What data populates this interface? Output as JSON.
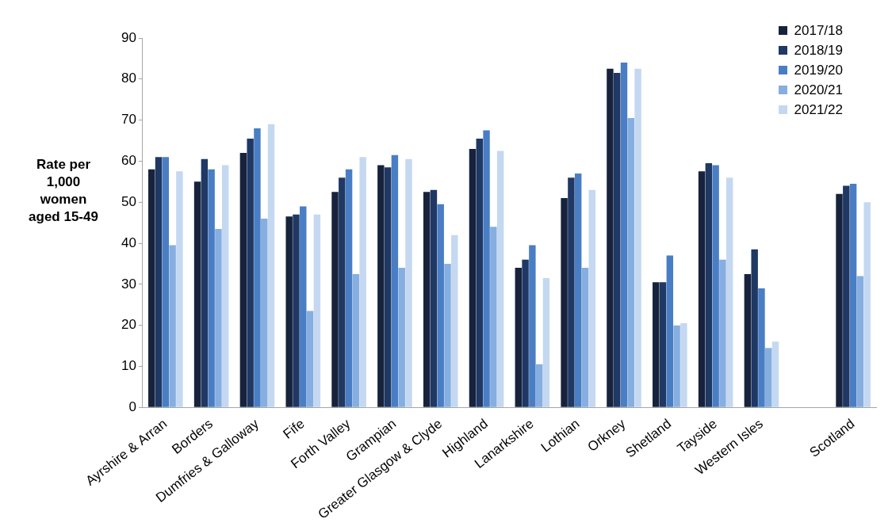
{
  "chart_data": {
    "type": "bar",
    "y_label": [
      "Rate per",
      "1,000",
      "women",
      "aged 15-49"
    ],
    "categories": [
      "Ayrshire & Arran",
      "Borders",
      "Dumfries & Galloway",
      "Fife",
      "Forth Valley",
      "Grampian",
      "Greater Glasgow & Clyde",
      "Highland",
      "Lanarkshire",
      "Lothian",
      "Orkney",
      "Shetland",
      "Tayside",
      "Western Isles",
      null,
      "Scotland"
    ],
    "series": [
      {
        "name": "2017/18",
        "color": "#17233d",
        "values": [
          58,
          55,
          62,
          46.5,
          52.5,
          59,
          52.5,
          63,
          34,
          51,
          82.5,
          30.5,
          57.5,
          32.5,
          null,
          52
        ]
      },
      {
        "name": "2018/19",
        "color": "#1f3864",
        "values": [
          61,
          60.5,
          65.5,
          47,
          56,
          58.5,
          53,
          65.5,
          36,
          56,
          81.5,
          30.5,
          59.5,
          38.5,
          null,
          54
        ]
      },
      {
        "name": "2019/20",
        "color": "#4a7ec4",
        "values": [
          61,
          58,
          68,
          49,
          58,
          61.5,
          49.5,
          67.5,
          39.5,
          57,
          84,
          37,
          59,
          29,
          null,
          54.5
        ]
      },
      {
        "name": "2020/21",
        "color": "#86aee0",
        "values": [
          39.5,
          43.5,
          46,
          23.5,
          32.5,
          34,
          35,
          44,
          10.5,
          34,
          70.5,
          20,
          36,
          14.5,
          null,
          32
        ]
      },
      {
        "name": "2021/22",
        "color": "#c5d8f1",
        "values": [
          57.5,
          59,
          69,
          47,
          61,
          60.5,
          42,
          62.5,
          31.5,
          53,
          82.5,
          20.5,
          56,
          16,
          null,
          50
        ]
      }
    ],
    "ylim": [
      0,
      90
    ],
    "yticks": [
      0,
      10,
      20,
      30,
      40,
      50,
      60,
      70,
      80,
      90
    ],
    "grid": false,
    "legend": "upper right"
  }
}
